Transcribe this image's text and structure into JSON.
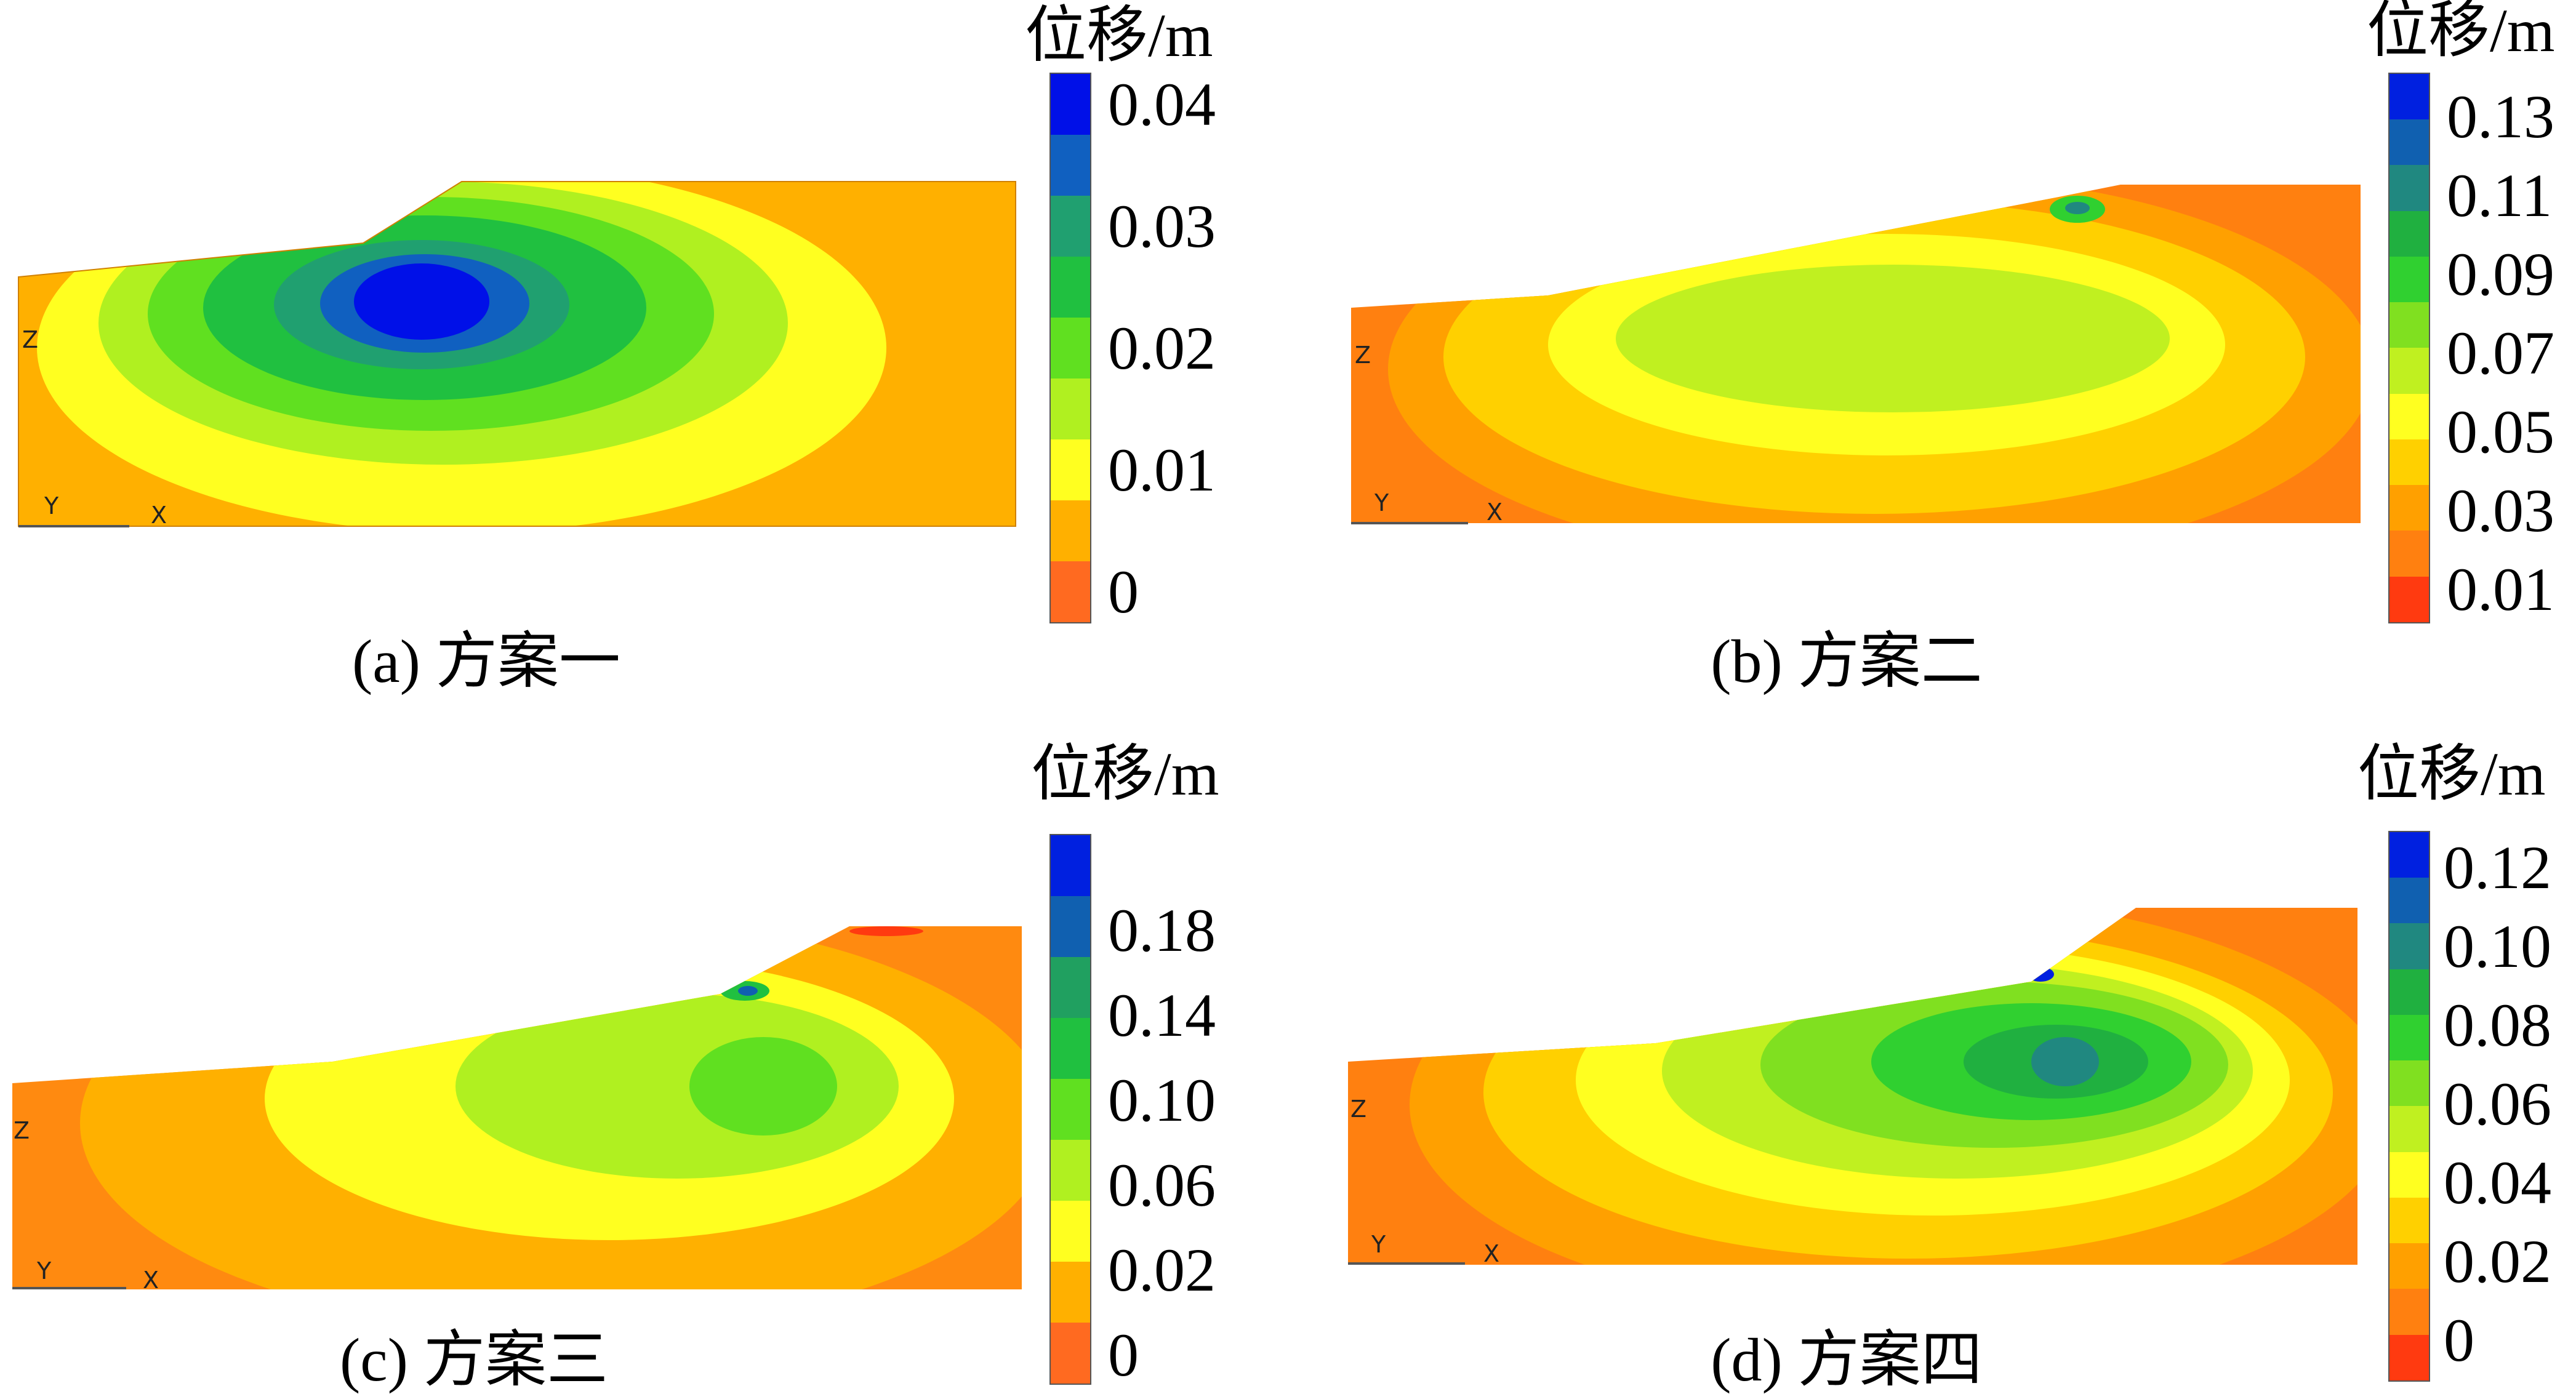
{
  "legend_title": "位移/m",
  "axis_labels": {
    "z": "Z",
    "y": "Y",
    "x": "X"
  },
  "panels": [
    {
      "caption": "(a) 方案一",
      "ticks": [
        "0.04",
        "0.03",
        "0.02",
        "0.01",
        "0"
      ],
      "legend_colors": [
        "#0010e8",
        "#1060c0",
        "#20a070",
        "#20c040",
        "#60e020",
        "#b0f020",
        "#ffff20",
        "#ffb000",
        "#ff6a20"
      ]
    },
    {
      "caption": "(b) 方案二",
      "ticks": [
        "0.13",
        "0.11",
        "0.09",
        "0.07",
        "0.05",
        "0.03",
        "0.01"
      ],
      "legend_colors": [
        "#0020e0",
        "#1060b0",
        "#208880",
        "#20b040",
        "#30d030",
        "#80e020",
        "#c0f020",
        "#ffff20",
        "#ffd000",
        "#ffa000",
        "#ff8010",
        "#ff3a10"
      ]
    },
    {
      "caption": "(c) 方案三",
      "ticks": [
        "0.18",
        "0.14",
        "0.10",
        "0.06",
        "0.02",
        "0"
      ],
      "legend_colors": [
        "#0020e0",
        "#1060b0",
        "#20a060",
        "#20c040",
        "#60e020",
        "#b0f020",
        "#ffff20",
        "#ffb000",
        "#ff6a20"
      ]
    },
    {
      "caption": "(d) 方案四",
      "ticks": [
        "0.12",
        "0.10",
        "0.08",
        "0.06",
        "0.04",
        "0.02",
        "0"
      ],
      "legend_colors": [
        "#0020e0",
        "#1060b0",
        "#208880",
        "#20b040",
        "#30d030",
        "#80e020",
        "#c0f020",
        "#ffff20",
        "#ffd000",
        "#ffa000",
        "#ff8010",
        "#ff3a10"
      ]
    }
  ]
}
